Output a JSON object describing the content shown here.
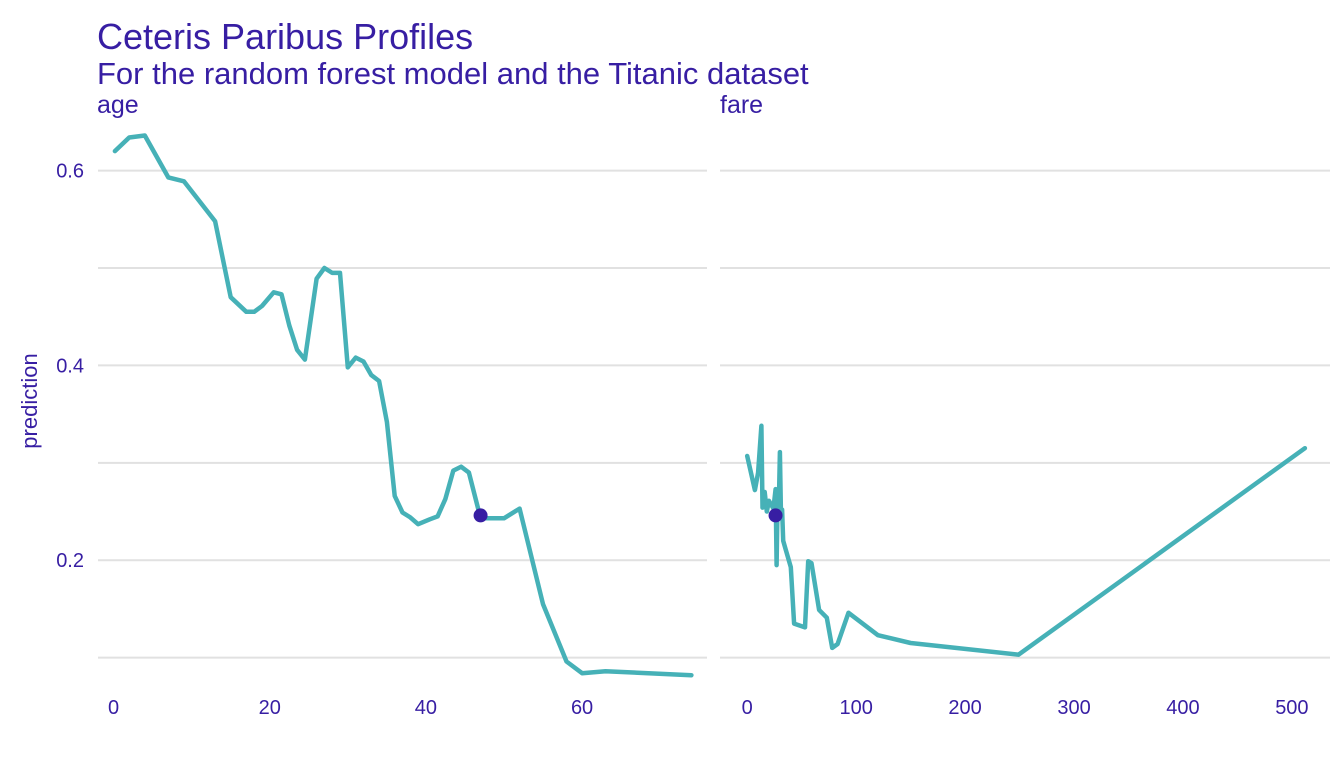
{
  "chart_data": {
    "type": "line",
    "title": "Ceteris Paribus Profiles",
    "subtitle": "For the random forest model and the Titanic dataset",
    "ylabel": "prediction",
    "ylim": [
      0.075,
      0.655
    ],
    "yticks": [
      0.2,
      0.4,
      0.6
    ],
    "yticklabels": [
      "0.2",
      "0.4",
      "0.6"
    ],
    "grid_lines": [
      0.1,
      0.2,
      0.3,
      0.4,
      0.5,
      0.6
    ],
    "line_color": "#46B1B7",
    "point_color": "#371EA3",
    "text_color": "#371EA3",
    "grid_color": "#E1E1E1",
    "panels": [
      {
        "strip": "age",
        "xlim": [
          -2,
          76
        ],
        "xticks": [
          0,
          20,
          40,
          60
        ],
        "xticklabels": [
          "0",
          "20",
          "40",
          "60"
        ],
        "x": [
          0.17,
          2,
          4,
          7,
          9,
          13,
          15,
          17,
          18,
          19,
          20.5,
          21.5,
          22.5,
          23.5,
          24.5,
          26,
          27,
          28,
          29,
          30,
          31,
          32,
          33,
          34,
          35,
          36,
          37,
          38,
          39,
          40.5,
          41.5,
          42.5,
          43.5,
          44.5,
          45.5,
          47,
          48,
          50,
          52,
          55,
          58,
          60,
          63,
          74
        ],
        "y": [
          0.62,
          0.634,
          0.636,
          0.593,
          0.589,
          0.548,
          0.47,
          0.455,
          0.455,
          0.461,
          0.475,
          0.473,
          0.441,
          0.416,
          0.406,
          0.489,
          0.5,
          0.495,
          0.495,
          0.398,
          0.408,
          0.404,
          0.39,
          0.384,
          0.342,
          0.266,
          0.249,
          0.244,
          0.237,
          0.242,
          0.245,
          0.263,
          0.292,
          0.296,
          0.29,
          0.243,
          0.243,
          0.243,
          0.253,
          0.155,
          0.096,
          0.084,
          0.086,
          0.082
        ],
        "point": {
          "x": 47,
          "y": 0.246
        }
      },
      {
        "strip": "fare",
        "xlim": [
          -25,
          535
        ],
        "xticks": [
          0,
          100,
          200,
          300,
          400,
          500
        ],
        "xticklabels": [
          "0",
          "100",
          "200",
          "300",
          "400",
          "500"
        ],
        "x": [
          0,
          7,
          10,
          13,
          14,
          16,
          18,
          20,
          24,
          26,
          27,
          28,
          29,
          30,
          31,
          32,
          33,
          35,
          40,
          43,
          53,
          56,
          59,
          66,
          73,
          78,
          83,
          93,
          120,
          150,
          249,
          512
        ],
        "y": [
          0.307,
          0.272,
          0.29,
          0.338,
          0.254,
          0.27,
          0.25,
          0.261,
          0.253,
          0.273,
          0.195,
          0.271,
          0.255,
          0.311,
          0.245,
          0.252,
          0.22,
          0.212,
          0.193,
          0.135,
          0.131,
          0.199,
          0.197,
          0.149,
          0.141,
          0.11,
          0.114,
          0.146,
          0.123,
          0.115,
          0.103,
          0.315
        ],
        "point": {
          "x": 26,
          "y": 0.246
        }
      }
    ]
  }
}
